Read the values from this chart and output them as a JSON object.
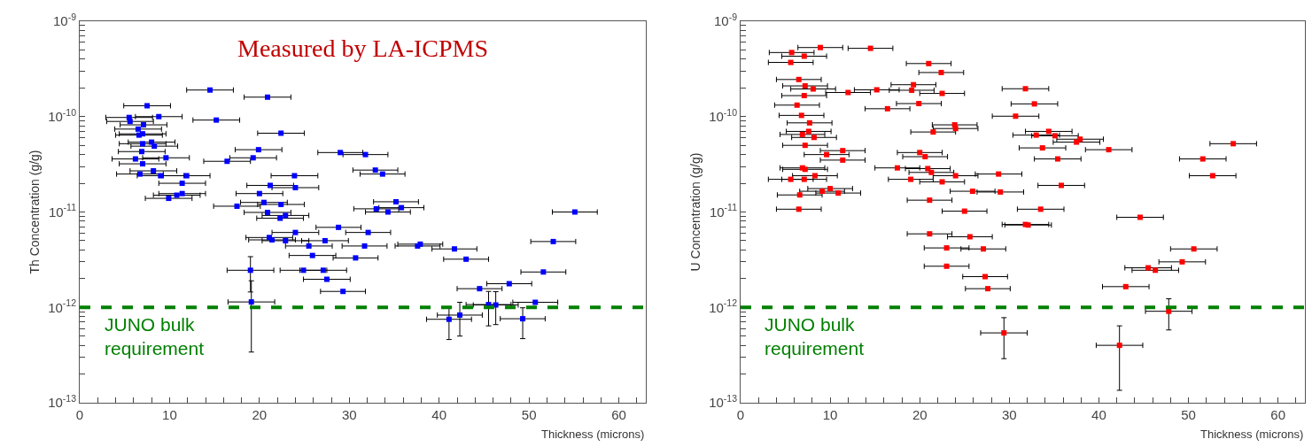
{
  "chart_data": [
    {
      "type": "scatter",
      "title": "Measured by LA-ICPMS",
      "xlabel": "Thickness (microns)",
      "ylabel": "Th Concentration (g/g)",
      "log": "y",
      "marker": "square",
      "grid": false,
      "xlim": [
        0,
        63
      ],
      "ylim": [
        1e-13,
        1e-09
      ],
      "xticks": [
        0,
        {
          "value": 2,
          "label": null
        },
        {
          "value": 4,
          "label": null
        },
        {
          "value": 6,
          "label": null
        },
        {
          "value": 8,
          "label": null
        },
        10,
        {
          "value": 12,
          "label": null
        },
        {
          "value": 14,
          "label": null
        },
        {
          "value": 16,
          "label": null
        },
        {
          "value": 18,
          "label": null
        },
        20,
        {
          "value": 22,
          "label": null
        },
        {
          "value": 24,
          "label": null
        },
        {
          "value": 26,
          "label": null
        },
        {
          "value": 28,
          "label": null
        },
        30,
        {
          "value": 32,
          "label": null
        },
        {
          "value": 34,
          "label": null
        },
        {
          "value": 36,
          "label": null
        },
        {
          "value": 38,
          "label": null
        },
        40,
        {
          "value": 42,
          "label": null
        },
        {
          "value": 44,
          "label": null
        },
        {
          "value": 46,
          "label": null
        },
        {
          "value": 48,
          "label": null
        },
        50,
        {
          "value": 52,
          "label": null
        },
        {
          "value": 54,
          "label": null
        },
        {
          "value": 56,
          "label": null
        },
        {
          "value": 58,
          "label": null
        },
        60,
        {
          "value": 62,
          "label": null
        }
      ],
      "yticks": [
        {
          "value": 1e-13,
          "label": "10$^{-13}$"
        },
        {
          "value": 2e-13,
          "label": null
        },
        {
          "value": 3e-13,
          "label": null
        },
        {
          "value": 4e-13,
          "label": null
        },
        {
          "value": 5e-13,
          "label": null
        },
        {
          "value": 6e-13,
          "label": null
        },
        {
          "value": 7e-13,
          "label": null
        },
        {
          "value": 8e-13,
          "label": null
        },
        {
          "value": 9e-13,
          "label": null
        },
        {
          "value": 1e-12,
          "label": "10$^{-12}$"
        },
        {
          "value": 2e-12,
          "label": null
        },
        {
          "value": 3e-12,
          "label": null
        },
        {
          "value": 4e-12,
          "label": null
        },
        {
          "value": 5e-12,
          "label": null
        },
        {
          "value": 6e-12,
          "label": null
        },
        {
          "value": 7e-12,
          "label": null
        },
        {
          "value": 8e-12,
          "label": null
        },
        {
          "value": 9e-12,
          "label": null
        },
        {
          "value": 1e-11,
          "label": "10$^{-11}$"
        },
        {
          "value": 2e-11,
          "label": null
        },
        {
          "value": 3e-11,
          "label": null
        },
        {
          "value": 4e-11,
          "label": null
        },
        {
          "value": 5e-11,
          "label": null
        },
        {
          "value": 6e-11,
          "label": null
        },
        {
          "value": 7e-11,
          "label": null
        },
        {
          "value": 8e-11,
          "label": null
        },
        {
          "value": 9e-11,
          "label": null
        },
        {
          "value": 1e-10,
          "label": "10$^{-10}$"
        },
        {
          "value": 2e-10,
          "label": null
        },
        {
          "value": 3e-10,
          "label": null
        },
        {
          "value": 4e-10,
          "label": null
        },
        {
          "value": 5e-10,
          "label": null
        },
        {
          "value": 6e-10,
          "label": null
        },
        {
          "value": 7e-10,
          "label": null
        },
        {
          "value": 8e-10,
          "label": null
        },
        {
          "value": 9e-10,
          "label": null
        },
        {
          "value": 1e-09,
          "label": "10$^{-9}$"
        }
      ],
      "ref_lines": [
        {
          "axis": "y",
          "value": 1e-12,
          "label": "JUNO bulk\nrequirement",
          "color": "#008000",
          "line_style": "dashed"
        }
      ],
      "series": [
        {
          "color": "#0000ff",
          "x": [
            14.5,
            20.9,
            7.5,
            5.5,
            5.6,
            8.8,
            15.2,
            7.1,
            22.4,
            6.5,
            6.6,
            7.0,
            8.0,
            7.0,
            8.3,
            19.9,
            6.9,
            6.2,
            9.6,
            19.3,
            16.4,
            7.0,
            8.2,
            6.7,
            9.0,
            11.9,
            23.9,
            11.4,
            21.2,
            24.0,
            20.0,
            9.9,
            10.8,
            11.4,
            17.5,
            20.5,
            22.4,
            20.9,
            22.3,
            22.9,
            24.0,
            21.1,
            21.4,
            22.9,
            25.5,
            27.3,
            25.9,
            19.0,
            24.9,
            27.1,
            27.5,
            19.1,
            29.0,
            31.8,
            32.9,
            33.7,
            35.2,
            33.0,
            34.3,
            35.8,
            28.8,
            32.1,
            31.7,
            37.6,
            37.9,
            30.7,
            41.7,
            43.0,
            29.3,
            44.5,
            47.8,
            45.5,
            46.3,
            50.7,
            41.1,
            42.3,
            49.3,
            51.6,
            52.7,
            55.1
          ],
          "values": [
            1.9e-10,
            1.6e-10,
            1.3e-10,
            9.8e-11,
            8.9e-11,
            1e-10,
            9.2e-11,
            8.2e-11,
            6.7e-11,
            7.4e-11,
            6.4e-11,
            6.6e-11,
            5.4e-11,
            5.2e-11,
            4.9e-11,
            4.5e-11,
            4.3e-11,
            3.6e-11,
            3.7e-11,
            3.7e-11,
            3.4e-11,
            3.2e-11,
            2.7e-11,
            2.5e-11,
            2.4e-11,
            2.4e-11,
            2.4e-11,
            2e-11,
            1.9e-11,
            1.8e-11,
            1.56e-11,
            1.39e-11,
            1.5e-11,
            1.56e-11,
            1.15e-11,
            1.26e-11,
            1.2e-11,
            9.9e-12,
            8.6e-12,
            9.2e-12,
            6.1e-12,
            5.4e-12,
            5.1e-12,
            5e-12,
            4.4e-12,
            5e-12,
            3.5e-12,
            2.45e-12,
            2.45e-12,
            2.45e-12,
            1.97e-12,
            1.14e-12,
            4.2e-11,
            4e-11,
            2.75e-11,
            2.5e-11,
            1.28e-11,
            1.08e-11,
            1e-11,
            1.11e-11,
            6.9e-12,
            6.1e-12,
            4.4e-12,
            4.4e-12,
            4.6e-12,
            3.3e-12,
            4.1e-12,
            3.2e-12,
            1.47e-12,
            1.57e-12,
            1.77e-12,
            1.07e-12,
            1.06e-12,
            1.13e-12,
            7.5e-13,
            8.3e-13,
            7.6e-13,
            2.35e-12,
            4.9e-12,
            1e-11
          ],
          "errors": [
            null,
            null,
            null,
            null,
            null,
            null,
            null,
            null,
            null,
            null,
            null,
            null,
            null,
            null,
            null,
            null,
            null,
            null,
            null,
            null,
            null,
            null,
            null,
            null,
            null,
            null,
            null,
            null,
            null,
            null,
            null,
            null,
            null,
            null,
            null,
            null,
            null,
            null,
            null,
            null,
            null,
            null,
            null,
            null,
            null,
            null,
            null,
            [
              1.45e-12,
              3.4e-12
            ],
            null,
            null,
            null,
            [
              3.4e-13,
              1.9e-12
            ],
            null,
            null,
            null,
            null,
            null,
            null,
            null,
            null,
            null,
            null,
            null,
            null,
            null,
            null,
            null,
            null,
            null,
            null,
            null,
            [
              6.4e-13,
              1.47e-12
            ],
            [
              6.6e-13,
              1.46e-12
            ],
            null,
            [
              4.6e-13,
              9.9e-13
            ],
            [
              5e-13,
              1.13e-12
            ],
            [
              4.7e-13,
              9.9e-13
            ],
            null,
            null,
            null
          ],
          "xerrors": [
            2.6,
            2.6,
            2.6,
            2.6,
            2.6,
            2.6,
            2.6,
            2.6,
            2.6,
            2.6,
            2.6,
            2.6,
            2.6,
            2.6,
            2.6,
            2.6,
            2.6,
            2.6,
            2.6,
            2.6,
            2.6,
            2.6,
            2.6,
            2.6,
            2.6,
            2.6,
            2.6,
            2.6,
            2.6,
            2.6,
            2.6,
            2.6,
            2.6,
            2.6,
            2.6,
            2.6,
            2.6,
            2.6,
            2.6,
            2.6,
            2.6,
            2.6,
            2.6,
            2.6,
            2.6,
            2.6,
            2.6,
            2.6,
            2.6,
            2.6,
            2.6,
            2.6,
            2.5,
            2.5,
            2.5,
            2.5,
            2.5,
            2.5,
            2.5,
            2.5,
            2.5,
            2.5,
            2.5,
            2.5,
            2.5,
            2.5,
            2.5,
            2.5,
            2.5,
            2.5,
            2.5,
            2.5,
            2.5,
            2.5,
            2.5,
            2.5,
            2.5,
            2.5,
            2.5,
            2.5
          ]
        }
      ]
    },
    {
      "type": "scatter",
      "xlabel": "Thickness (microns)",
      "ylabel": "U Concentration (g/g)",
      "log": "y",
      "marker": "square",
      "grid": false,
      "xlim": [
        0,
        63
      ],
      "ylim": [
        1e-13,
        1e-09
      ],
      "xticks": [
        0,
        {
          "value": 2,
          "label": null
        },
        {
          "value": 4,
          "label": null
        },
        {
          "value": 6,
          "label": null
        },
        {
          "value": 8,
          "label": null
        },
        10,
        {
          "value": 12,
          "label": null
        },
        {
          "value": 14,
          "label": null
        },
        {
          "value": 16,
          "label": null
        },
        {
          "value": 18,
          "label": null
        },
        20,
        {
          "value": 22,
          "label": null
        },
        {
          "value": 24,
          "label": null
        },
        {
          "value": 26,
          "label": null
        },
        {
          "value": 28,
          "label": null
        },
        30,
        {
          "value": 32,
          "label": null
        },
        {
          "value": 34,
          "label": null
        },
        {
          "value": 36,
          "label": null
        },
        {
          "value": 38,
          "label": null
        },
        40,
        {
          "value": 42,
          "label": null
        },
        {
          "value": 44,
          "label": null
        },
        {
          "value": 46,
          "label": null
        },
        {
          "value": 48,
          "label": null
        },
        50,
        {
          "value": 52,
          "label": null
        },
        {
          "value": 54,
          "label": null
        },
        {
          "value": 56,
          "label": null
        },
        {
          "value": 58,
          "label": null
        },
        60,
        {
          "value": 62,
          "label": null
        }
      ],
      "yticks": [
        {
          "value": 1e-13,
          "label": "10$^{-13}$"
        },
        {
          "value": 2e-13,
          "label": null
        },
        {
          "value": 3e-13,
          "label": null
        },
        {
          "value": 4e-13,
          "label": null
        },
        {
          "value": 5e-13,
          "label": null
        },
        {
          "value": 6e-13,
          "label": null
        },
        {
          "value": 7e-13,
          "label": null
        },
        {
          "value": 8e-13,
          "label": null
        },
        {
          "value": 9e-13,
          "label": null
        },
        {
          "value": 1e-12,
          "label": "10$^{-12}$"
        },
        {
          "value": 2e-12,
          "label": null
        },
        {
          "value": 3e-12,
          "label": null
        },
        {
          "value": 4e-12,
          "label": null
        },
        {
          "value": 5e-12,
          "label": null
        },
        {
          "value": 6e-12,
          "label": null
        },
        {
          "value": 7e-12,
          "label": null
        },
        {
          "value": 8e-12,
          "label": null
        },
        {
          "value": 9e-12,
          "label": null
        },
        {
          "value": 1e-11,
          "label": "10$^{-11}$"
        },
        {
          "value": 2e-11,
          "label": null
        },
        {
          "value": 3e-11,
          "label": null
        },
        {
          "value": 4e-11,
          "label": null
        },
        {
          "value": 5e-11,
          "label": null
        },
        {
          "value": 6e-11,
          "label": null
        },
        {
          "value": 7e-11,
          "label": null
        },
        {
          "value": 8e-11,
          "label": null
        },
        {
          "value": 9e-11,
          "label": null
        },
        {
          "value": 1e-10,
          "label": "10$^{-10}$"
        },
        {
          "value": 2e-10,
          "label": null
        },
        {
          "value": 3e-10,
          "label": null
        },
        {
          "value": 4e-10,
          "label": null
        },
        {
          "value": 5e-10,
          "label": null
        },
        {
          "value": 6e-10,
          "label": null
        },
        {
          "value": 7e-10,
          "label": null
        },
        {
          "value": 8e-10,
          "label": null
        },
        {
          "value": 9e-10,
          "label": null
        },
        {
          "value": 1e-09,
          "label": "10$^{-9}$"
        }
      ],
      "ref_lines": [
        {
          "axis": "y",
          "value": 1e-12,
          "label": "JUNO bulk\nrequirement",
          "color": "#008000",
          "line_style": "dashed"
        }
      ],
      "series": [
        {
          "color": "#ff0000",
          "x": [
            8.9,
            14.5,
            5.7,
            7.1,
            5.6,
            21.0,
            22.4,
            6.5,
            7.2,
            8.1,
            19.3,
            19.1,
            15.2,
            12.0,
            22.5,
            7.1,
            6.3,
            19.9,
            16.4,
            6.8,
            7.7,
            23.9,
            24.0,
            7.6,
            6.9,
            21.5,
            8.2,
            7.2,
            11.4,
            9.6,
            11.4,
            20.0,
            20.6,
            6.9,
            7.2,
            17.5,
            20.9,
            21.3,
            8.3,
            5.6,
            7.1,
            19.0,
            24.0,
            22.5,
            10.0,
            9.1,
            10.9,
            6.6,
            25.9,
            21.1,
            6.5,
            25.0,
            21.1,
            25.6,
            23.0,
            27.1,
            23.0,
            27.3,
            27.6,
            31.8,
            32.8,
            30.7,
            34.4,
            33.0,
            35.1,
            37.9,
            37.5,
            33.7,
            41.1,
            35.4,
            55.0,
            51.6,
            52.7,
            28.8,
            35.8,
            29.0,
            33.5,
            44.6,
            31.8,
            32.1,
            50.6,
            49.3,
            45.5,
            46.3,
            43.0,
            47.8,
            29.4,
            42.3
          ],
          "values": [
            5.3e-10,
            5.2e-10,
            4.7e-10,
            4.3e-10,
            3.7e-10,
            3.6e-10,
            2.9e-10,
            2.45e-10,
            2.1e-10,
            1.95e-10,
            2.16e-10,
            1.89e-10,
            1.91e-10,
            1.79e-10,
            1.75e-10,
            1.66e-10,
            1.32e-10,
            1.37e-10,
            1.21e-10,
            1.03e-10,
            8.6e-11,
            8.2e-11,
            7.5e-11,
            7e-11,
            6.5e-11,
            6.9e-11,
            6.05e-11,
            5e-11,
            4.4e-11,
            4e-11,
            3.5e-11,
            4.2e-11,
            3.8e-11,
            2.9e-11,
            2.8e-11,
            2.9e-11,
            2.85e-11,
            2.6e-11,
            2.4e-11,
            2.2e-11,
            2.2e-11,
            2.2e-11,
            2.4e-11,
            2.07e-11,
            1.76e-11,
            1.65e-11,
            1.58e-11,
            1.51e-11,
            1.65e-11,
            1.33e-11,
            1.07e-11,
            1.02e-11,
            5.9e-12,
            5.5e-12,
            4.2e-12,
            4.1e-12,
            2.7e-12,
            2.1e-12,
            1.57e-12,
            1.96e-10,
            1.36e-10,
            1.01e-10,
            7e-11,
            6.4e-11,
            6.3e-11,
            5.8e-11,
            5.4e-11,
            4.7e-11,
            4.5e-11,
            3.6e-11,
            5.2e-11,
            3.6e-11,
            2.4e-11,
            2.5e-11,
            1.9e-11,
            1.62e-11,
            1.07e-11,
            8.8e-12,
            7.4e-12,
            7.3e-12,
            4.1e-12,
            3e-12,
            2.6e-12,
            2.45e-12,
            1.65e-12,
            9.1e-13,
            5.4e-13,
            4e-13
          ],
          "errors": [
            null,
            null,
            null,
            null,
            null,
            null,
            null,
            null,
            null,
            null,
            null,
            null,
            null,
            null,
            null,
            null,
            null,
            null,
            null,
            null,
            null,
            null,
            null,
            null,
            null,
            null,
            null,
            null,
            null,
            null,
            null,
            null,
            null,
            null,
            null,
            null,
            null,
            null,
            null,
            null,
            null,
            null,
            null,
            null,
            null,
            null,
            null,
            null,
            null,
            null,
            null,
            null,
            null,
            null,
            null,
            null,
            null,
            null,
            null,
            null,
            null,
            null,
            null,
            null,
            null,
            null,
            null,
            null,
            null,
            null,
            null,
            null,
            null,
            null,
            null,
            null,
            null,
            null,
            null,
            null,
            null,
            null,
            null,
            null,
            null,
            [
              5.8e-13,
              1.23e-12
            ],
            [
              2.9e-13,
              7.8e-13
            ],
            [
              1.35e-13,
              6.4e-13
            ]
          ],
          "xerrors": [
            2.5,
            2.5,
            2.5,
            2.5,
            2.5,
            2.5,
            2.5,
            2.5,
            2.5,
            2.5,
            2.5,
            2.5,
            2.5,
            2.5,
            2.5,
            2.5,
            2.5,
            2.5,
            2.5,
            2.5,
            2.5,
            2.5,
            2.5,
            2.5,
            2.5,
            2.5,
            2.5,
            2.5,
            2.5,
            2.5,
            2.5,
            2.5,
            2.5,
            2.5,
            2.5,
            2.5,
            2.5,
            2.5,
            2.5,
            2.5,
            2.5,
            2.5,
            2.5,
            2.5,
            2.5,
            2.5,
            2.5,
            2.5,
            2.5,
            2.5,
            2.5,
            2.5,
            2.5,
            2.5,
            2.5,
            2.5,
            2.5,
            2.5,
            2.5,
            2.6,
            2.6,
            2.6,
            2.6,
            2.6,
            2.6,
            2.6,
            2.6,
            2.6,
            2.6,
            2.6,
            2.6,
            2.6,
            2.6,
            2.6,
            2.6,
            2.6,
            2.6,
            2.6,
            2.6,
            2.6,
            2.6,
            2.6,
            2.6,
            2.6,
            2.6,
            2.6,
            2.6,
            2.6
          ]
        }
      ]
    }
  ]
}
